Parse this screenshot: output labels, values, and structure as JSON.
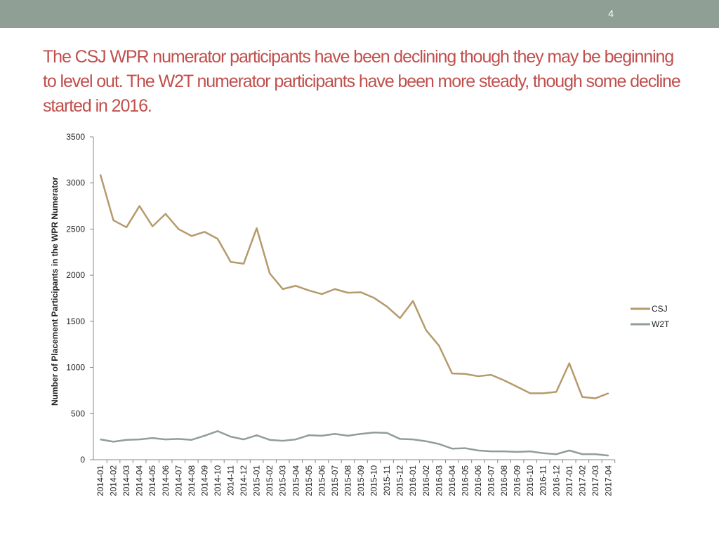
{
  "slide": {
    "number": "4",
    "title": "The CSJ WPR numerator participants have been declining though they may be beginning to level out. The W2T numerator participants have been more steady, though some decline started in 2016."
  },
  "colors": {
    "top_bar": "#8f9f96",
    "title": "#c0504d",
    "csj": "#b59a6b",
    "w2t": "#8f9f96"
  },
  "chart_data": {
    "type": "line",
    "title": "",
    "xlabel": "",
    "ylabel": "Number of Placement Participants in the WPR Numerator",
    "ylim": [
      0,
      3500
    ],
    "yticks": [
      0,
      500,
      1000,
      1500,
      2000,
      2500,
      3000,
      3500
    ],
    "grid": false,
    "legend_position": "right",
    "categories": [
      "2014-01",
      "2014-02",
      "2014-03",
      "2014-04",
      "2014-05",
      "2014-06",
      "2014-07",
      "2014-08",
      "2014-09",
      "2014-10",
      "2014-11",
      "2014-12",
      "2015-01",
      "2015-02",
      "2015-03",
      "2015-04",
      "2015-05",
      "2015-06",
      "2015-07",
      "2015-08",
      "2015-09",
      "2015-10",
      "2015-11",
      "2015-12",
      "2016-01",
      "2016-02",
      "2016-03",
      "2016-04",
      "2016-05",
      "2016-06",
      "2016-07",
      "2016-08",
      "2016-09",
      "2016-10",
      "2016-11",
      "2016-12",
      "2017-01",
      "2017-02",
      "2017-03",
      "2017-04"
    ],
    "series": [
      {
        "name": "CSJ",
        "color": "#b59a6b",
        "values": [
          3090,
          2595,
          2520,
          2750,
          2530,
          2665,
          2500,
          2425,
          2470,
          2395,
          2145,
          2125,
          2510,
          2020,
          1850,
          1885,
          1835,
          1795,
          1850,
          1810,
          1815,
          1755,
          1660,
          1535,
          1720,
          1405,
          1235,
          935,
          930,
          905,
          920,
          860,
          790,
          720,
          720,
          735,
          1045,
          680,
          665,
          720
        ]
      },
      {
        "name": "W2T",
        "color": "#8f9f96",
        "values": [
          220,
          195,
          215,
          220,
          235,
          220,
          225,
          215,
          260,
          310,
          250,
          220,
          265,
          215,
          205,
          220,
          265,
          260,
          280,
          260,
          280,
          295,
          290,
          225,
          220,
          200,
          170,
          120,
          125,
          100,
          90,
          90,
          85,
          90,
          70,
          60,
          100,
          60,
          60,
          45
        ]
      }
    ]
  }
}
